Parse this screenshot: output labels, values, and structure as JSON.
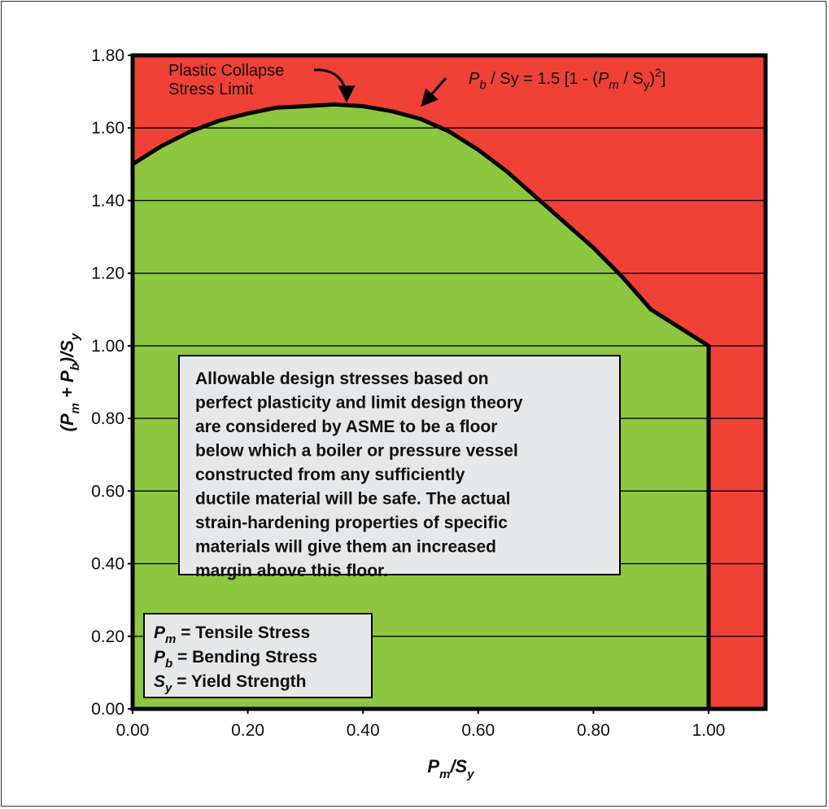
{
  "chart_data": {
    "type": "area",
    "title": "",
    "xlabel": "P_m/S_y",
    "ylabel": "(P_m + P_b)/S_y",
    "xlim": [
      0,
      1.1
    ],
    "ylim": [
      0,
      1.8
    ],
    "x_ticks": [
      "0.00",
      "0.20",
      "0.40",
      "0.60",
      "0.80",
      "1.00"
    ],
    "y_ticks": [
      "0.00",
      "0.20",
      "0.40",
      "0.60",
      "0.80",
      "1.00",
      "1.20",
      "1.40",
      "1.60",
      "1.80"
    ],
    "grid": "horizontal",
    "series": [
      {
        "name": "",
        "x": [
          0.0,
          0.05,
          0.1,
          0.15,
          0.2,
          0.25,
          0.3,
          0.35,
          0.4,
          0.45,
          0.5,
          0.55,
          0.6,
          0.65,
          0.7,
          0.75,
          0.8,
          0.85,
          0.9,
          0.95,
          1.0
        ],
        "y": [
          1.5,
          1.55,
          1.59,
          1.62,
          1.64,
          1.656,
          1.66,
          1.665,
          1.66,
          1.646,
          1.625,
          1.59,
          1.54,
          1.48,
          1.41,
          1.34,
          1.27,
          1.19,
          1.1,
          1.05,
          1.0
        ]
      }
    ],
    "colors": {
      "safe": "#8dc63f",
      "unsafe": "#ef4136",
      "curve": "#000000"
    },
    "annotations": {
      "plastic_collapse": [
        "Plastic Collapse",
        "Stress Limit"
      ],
      "equation": {
        "lhs_sub": "b",
        "lhs_mid": " / Sy = 1.5 [1 - (",
        "pm_sub": "m",
        "slash": " / S",
        "sy_sub": "y",
        "sup": "2",
        "end": "]"
      },
      "note": [
        "Allowable design stresses based on",
        "perfect plasticity and limit design theory",
        "are considered by ASME to be a floor",
        "below which a boiler or pressure vessel",
        "constructed from any sufficiently",
        "ductile material will be safe. The actual",
        "strain-hardening properties of specific",
        "materials will give them an increased",
        "margin above this floor."
      ],
      "legend": [
        {
          "sym": "P",
          "sub": "m",
          "text": " = Tensile Stress"
        },
        {
          "sym": "P",
          "sub": "b",
          "text": " = Bending Stress"
        },
        {
          "sym": "S",
          "sub": "y",
          "text": " = Yield Strength"
        }
      ]
    }
  }
}
